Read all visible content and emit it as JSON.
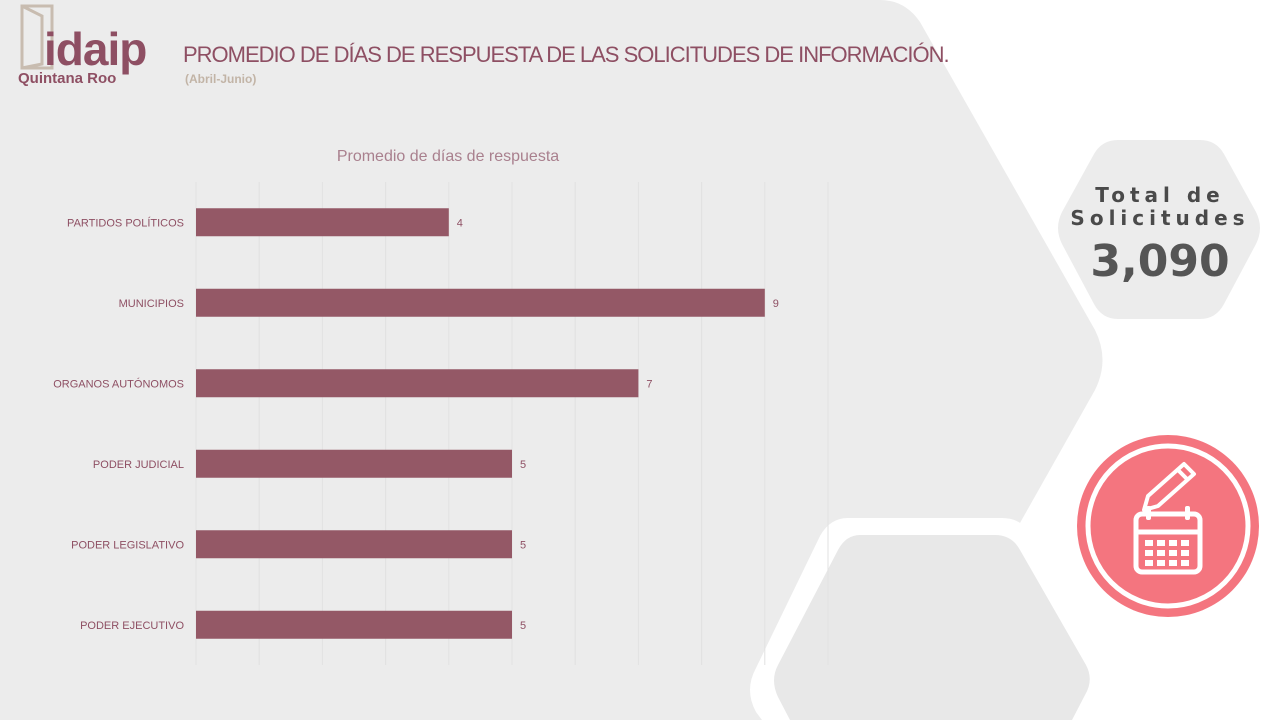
{
  "header": {
    "logo_text": "idaip",
    "logo_subtext": "Quintana Roo",
    "title": "PROMEDIO DE DÍAS DE RESPUESTA DE LAS SOLICITUDES DE INFORMACIÓN.",
    "subtitle": "(Abril-Junio)"
  },
  "summary": {
    "label": "Total de Solicitudes",
    "value": "3,090"
  },
  "icon": {
    "name": "calendar-edit-icon",
    "color": "#f4757f"
  },
  "colors": {
    "bar": "#945866",
    "text": "#8e4f63",
    "background_shape": "#ececec"
  },
  "chart_data": {
    "type": "bar",
    "orientation": "horizontal",
    "title": "Promedio de días de respuesta",
    "categories": [
      "PARTIDOS POLÍTICOS",
      "MUNICIPIOS",
      "ORGANOS AUTÓNOMOS",
      "PODER JUDICIAL",
      "PODER LEGISLATIVO",
      "PODER EJECUTIVO"
    ],
    "values": [
      4,
      9,
      7,
      5,
      5,
      5
    ],
    "xlim": [
      0,
      10
    ],
    "grid": true,
    "data_labels": true
  }
}
